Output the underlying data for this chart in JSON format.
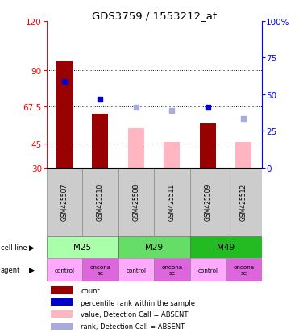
{
  "title": "GDS3759 / 1553212_at",
  "samples": [
    "GSM425507",
    "GSM425510",
    "GSM425508",
    "GSM425511",
    "GSM425509",
    "GSM425512"
  ],
  "bar_values_present": [
    95,
    63,
    null,
    null,
    57,
    null
  ],
  "bar_values_absent": [
    null,
    null,
    54,
    46,
    null,
    46
  ],
  "dot_values_present": [
    83,
    72,
    null,
    null,
    67,
    null
  ],
  "dot_values_absent": [
    null,
    null,
    67,
    65,
    null,
    60
  ],
  "ylim_left": [
    30,
    120
  ],
  "yticks_left": [
    30,
    45,
    67.5,
    90,
    120
  ],
  "yticks_right": [
    0,
    25,
    50,
    75,
    100
  ],
  "bar_color_present": "#990000",
  "bar_color_absent": "#ffb6c1",
  "dot_color_present": "#0000cc",
  "dot_color_absent": "#aaaadd",
  "cell_line_labels": [
    "M25",
    "M29",
    "M49"
  ],
  "cell_line_colors": [
    "#aaffaa",
    "#66dd66",
    "#22bb22"
  ],
  "cell_line_ranges": [
    [
      0,
      2
    ],
    [
      2,
      4
    ],
    [
      4,
      6
    ]
  ],
  "agent_labels": [
    "control",
    "oncona\nse",
    "control",
    "oncona\nse",
    "control",
    "oncona\nse"
  ],
  "agent_colors": [
    "#ffaaff",
    "#dd66dd",
    "#ffaaff",
    "#dd66dd",
    "#ffaaff",
    "#dd66dd"
  ],
  "legend_items": [
    {
      "color": "#990000",
      "label": "count"
    },
    {
      "color": "#0000cc",
      "label": "percentile rank within the sample"
    },
    {
      "color": "#ffb6c1",
      "label": "value, Detection Call = ABSENT"
    },
    {
      "color": "#aaaadd",
      "label": "rank, Detection Call = ABSENT"
    }
  ],
  "bg_color": "#ffffff"
}
